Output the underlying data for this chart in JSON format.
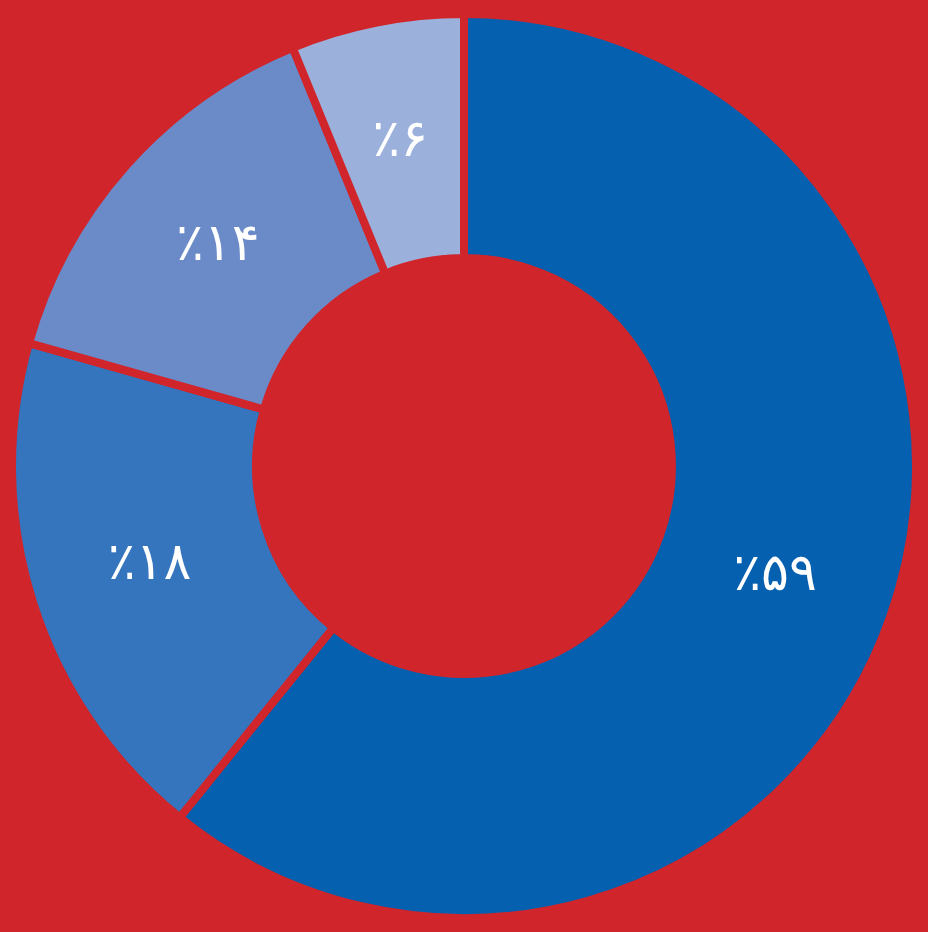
{
  "chart_data": {
    "type": "donut",
    "categories": [
      null,
      null,
      null,
      null
    ],
    "values": [
      59,
      18,
      14,
      6
    ],
    "colors": [
      "#0560b0",
      "#3575bd",
      "#6a8bc8",
      "#9bb0da"
    ],
    "value_labels": [
      "٪۵۹",
      "٪۱۸",
      "٪۱۴",
      "٪۶"
    ],
    "legend": false
  }
}
